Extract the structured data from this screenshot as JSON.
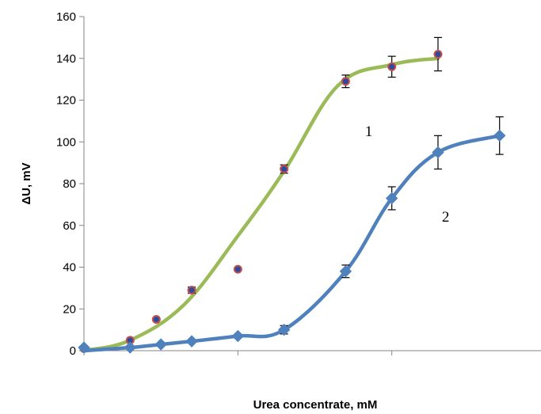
{
  "chart_data": {
    "type": "scatter",
    "title": "",
    "xlabel": "Urea concentrate, mM",
    "ylabel": "ΔU, mV",
    "xlim": [
      0,
      30
    ],
    "ylim": [
      0,
      160
    ],
    "y_ticks": [
      0,
      20,
      40,
      60,
      80,
      100,
      120,
      140,
      160
    ],
    "x_ticks": [
      0,
      10,
      20,
      30
    ],
    "x_tick_labels_shown": false,
    "grid": false,
    "legend": "none",
    "series": [
      {
        "name": "1",
        "color": "#9bbb59",
        "marker": "circle",
        "marker_fill": "#2b4aa0",
        "marker_edge": "#c0504d",
        "points": [
          {
            "x": 0,
            "y": 1,
            "err": 0
          },
          {
            "x": 3,
            "y": 5,
            "err": 0
          },
          {
            "x": 4.7,
            "y": 15,
            "err": 0
          },
          {
            "x": 7,
            "y": 29,
            "err": 1.5
          },
          {
            "x": 10,
            "y": 39,
            "err": 0
          },
          {
            "x": 13,
            "y": 87,
            "err": 2
          },
          {
            "x": 17,
            "y": 129,
            "err": 3
          },
          {
            "x": 20,
            "y": 136,
            "err": 5
          },
          {
            "x": 23,
            "y": 142,
            "err": 8
          }
        ],
        "curve": [
          {
            "x": 0,
            "y": 0
          },
          {
            "x": 3,
            "y": 5
          },
          {
            "x": 6.5,
            "y": 22
          },
          {
            "x": 10,
            "y": 55
          },
          {
            "x": 13,
            "y": 86
          },
          {
            "x": 16.5,
            "y": 127
          },
          {
            "x": 20,
            "y": 137
          },
          {
            "x": 23,
            "y": 140
          }
        ]
      },
      {
        "name": "2",
        "color": "#4f81bd",
        "marker": "diamond",
        "marker_fill": "#4f81bd",
        "marker_edge": "#4f81bd",
        "points": [
          {
            "x": 0,
            "y": 1.5,
            "err": 0
          },
          {
            "x": 3,
            "y": 1.5,
            "err": 0
          },
          {
            "x": 5,
            "y": 3,
            "err": 0
          },
          {
            "x": 7,
            "y": 4.5,
            "err": 0
          },
          {
            "x": 10,
            "y": 7,
            "err": 0
          },
          {
            "x": 13,
            "y": 10,
            "err": 2
          },
          {
            "x": 17,
            "y": 38,
            "err": 3
          },
          {
            "x": 20,
            "y": 73,
            "err": 5.5
          },
          {
            "x": 23,
            "y": 95,
            "err": 8
          },
          {
            "x": 27,
            "y": 103,
            "err": 9
          }
        ],
        "curve": [
          {
            "x": 0,
            "y": 0
          },
          {
            "x": 3,
            "y": 1.5
          },
          {
            "x": 5,
            "y": 3
          },
          {
            "x": 7,
            "y": 4.5
          },
          {
            "x": 10,
            "y": 7
          },
          {
            "x": 13,
            "y": 10
          },
          {
            "x": 17,
            "y": 38
          },
          {
            "x": 20,
            "y": 73
          },
          {
            "x": 23,
            "y": 95
          },
          {
            "x": 27,
            "y": 103
          }
        ]
      }
    ],
    "annotations": [
      {
        "text": "1",
        "x": 18.5,
        "y": 105
      },
      {
        "text": "2",
        "x": 23.5,
        "y": 64
      }
    ]
  }
}
